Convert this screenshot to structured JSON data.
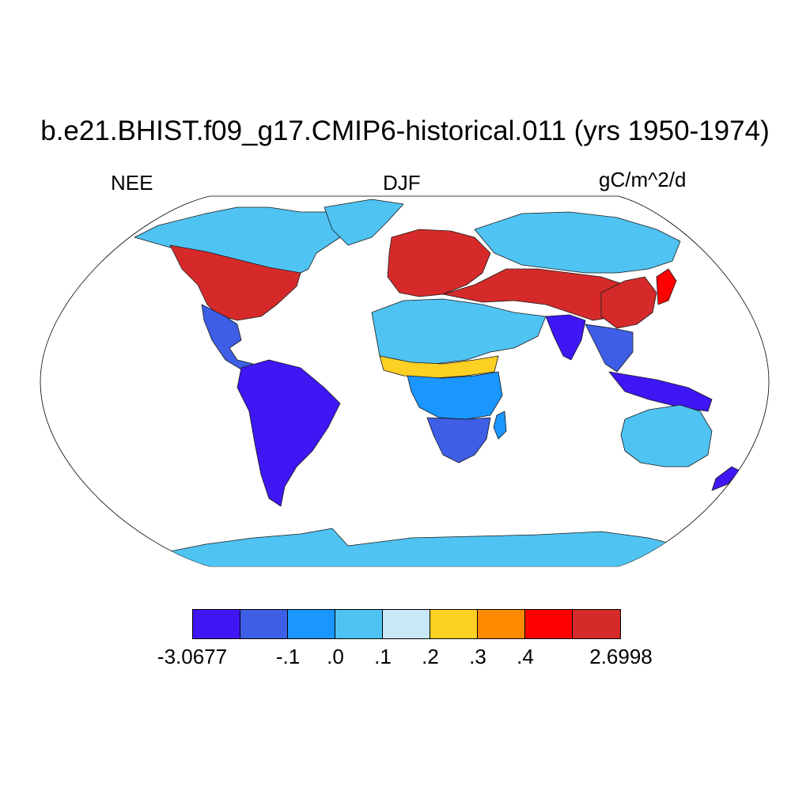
{
  "title": "b.e21.BHIST.f09_g17.CMIP6-historical.011 (yrs 1950-1974)",
  "left_label": "NEE",
  "center_label": "DJF",
  "right_label": "gC/m^2/d",
  "map": {
    "projection": "Robinson",
    "field": "NEE",
    "season": "DJF",
    "ocean_color": "#ffffff",
    "coastline_color": "#000000"
  },
  "colorbar": {
    "colors": [
      "#3f17f5",
      "#3e5ee6",
      "#1a96ff",
      "#4fc3f2",
      "#c8e8f7",
      "#fdd024",
      "#fe8a00",
      "#fe0000",
      "#d62a2a"
    ],
    "labels": [
      "-3.0677",
      "-.1",
      ".0",
      ".1",
      ".2",
      ".3",
      ".4",
      "2.6998"
    ]
  },
  "regions": [
    {
      "name": "north-america-north",
      "color_index": 3
    },
    {
      "name": "north-america-temperate",
      "color_index": 8
    },
    {
      "name": "greenland",
      "color_index": 3
    },
    {
      "name": "central-america",
      "color_index": 1
    },
    {
      "name": "south-america",
      "color_index": 0
    },
    {
      "name": "europe",
      "color_index": 8
    },
    {
      "name": "siberia",
      "color_index": 3
    },
    {
      "name": "central-asia-band",
      "color_index": 8
    },
    {
      "name": "sahara-arabia",
      "color_index": 3
    },
    {
      "name": "sahel-band",
      "color_index": 5
    },
    {
      "name": "central-africa",
      "color_index": 2
    },
    {
      "name": "southern-africa",
      "color_index": 1
    },
    {
      "name": "madagascar",
      "color_index": 2
    },
    {
      "name": "india",
      "color_index": 0
    },
    {
      "name": "east-china",
      "color_index": 8
    },
    {
      "name": "japan",
      "color_index": 7
    },
    {
      "name": "southeast-asia",
      "color_index": 1
    },
    {
      "name": "maritime-continent",
      "color_index": 0
    },
    {
      "name": "australia",
      "color_index": 3
    },
    {
      "name": "new-zealand",
      "color_index": 0
    },
    {
      "name": "antarctica",
      "color_index": 3
    }
  ]
}
